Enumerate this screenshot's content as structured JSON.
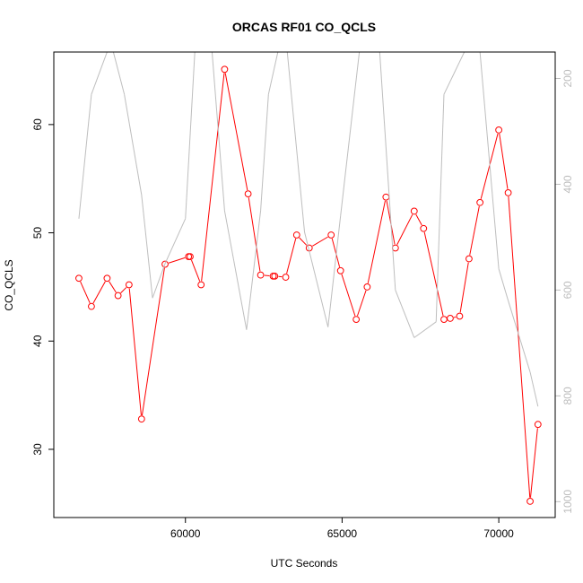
{
  "chart_data": {
    "type": "line",
    "title": "ORCAS RF01 CO_QCLS",
    "xlabel": "UTC Seconds",
    "ylabel": "CO_QCLS",
    "xlim": [
      55800,
      71800
    ],
    "ylim": [
      23.7,
      66.7
    ],
    "x_ticks": [
      60000,
      65000,
      70000
    ],
    "x_tick_labels": [
      "60000",
      "65000",
      "70000"
    ],
    "y_ticks": [
      30,
      40,
      50,
      60
    ],
    "y_tick_labels": [
      "30",
      "40",
      "50",
      "60"
    ],
    "grid": false,
    "legend": "none",
    "primary_color": "#ff0000",
    "secondary_color": "#bebebe",
    "series": [
      {
        "axis": "left",
        "style": "line+points",
        "color": "#ff0000",
        "x": [
          56600,
          57000,
          57500,
          57850,
          58200,
          58600,
          59350,
          60100,
          60150,
          60500,
          61250,
          62000,
          62400,
          62800,
          62850,
          63200,
          63550,
          63950,
          64650,
          64950,
          65450,
          65800,
          66400,
          66700,
          67300,
          67600,
          68250,
          68450,
          68750,
          69050,
          69400,
          70000,
          70300,
          71000,
          71250
        ],
        "y": [
          45.8,
          43.2,
          45.8,
          44.2,
          45.2,
          32.8,
          47.1,
          47.8,
          47.8,
          45.2,
          65.1,
          53.6,
          46.1,
          46.0,
          46.0,
          45.9,
          49.8,
          48.6,
          49.8,
          46.5,
          42.0,
          45.0,
          53.3,
          48.6,
          52.0,
          50.4,
          42.0,
          42.1,
          42.3,
          47.6,
          52.8,
          59.5,
          53.7,
          25.2,
          32.3
        ]
      },
      {
        "axis": "right",
        "style": "line",
        "color": "#bebebe",
        "x": [
          56600,
          57000,
          57500,
          57700,
          58050,
          58600,
          58950,
          59350,
          60000,
          60300,
          60850,
          61250,
          61950,
          62400,
          62650,
          62950,
          63250,
          63800,
          64550,
          64950,
          65550,
          66200,
          66700,
          67300,
          68000,
          68250,
          68900,
          69400,
          70000,
          70300,
          71000,
          71250
        ],
        "y": [
          465,
          230,
          150,
          150,
          230,
          420,
          615,
          550,
          465,
          150,
          150,
          450,
          675,
          450,
          230,
          150,
          150,
          490,
          670,
          460,
          150,
          150,
          600,
          690,
          660,
          230,
          150,
          150,
          560,
          620,
          755,
          820
        ],
        "ylim": [
          1030,
          150
        ],
        "y_ticks": [
          200,
          400,
          600,
          800,
          1000
        ],
        "y_tick_labels": [
          "200",
          "400",
          "600",
          "800",
          "1000"
        ]
      }
    ]
  }
}
